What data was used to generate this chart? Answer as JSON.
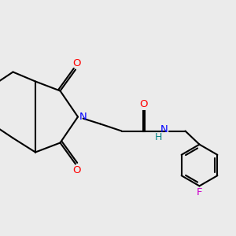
{
  "bg_color": "#ebebeb",
  "bond_color": "#000000",
  "nitrogen_color": "#0000ff",
  "oxygen_color": "#ff0000",
  "fluorine_color": "#cc00cc",
  "h_color": "#008080",
  "line_width": 1.5,
  "fig_width": 3.0,
  "fig_height": 3.0,
  "dpi": 100,
  "xlim": [
    0,
    10
  ],
  "ylim": [
    0,
    10
  ]
}
